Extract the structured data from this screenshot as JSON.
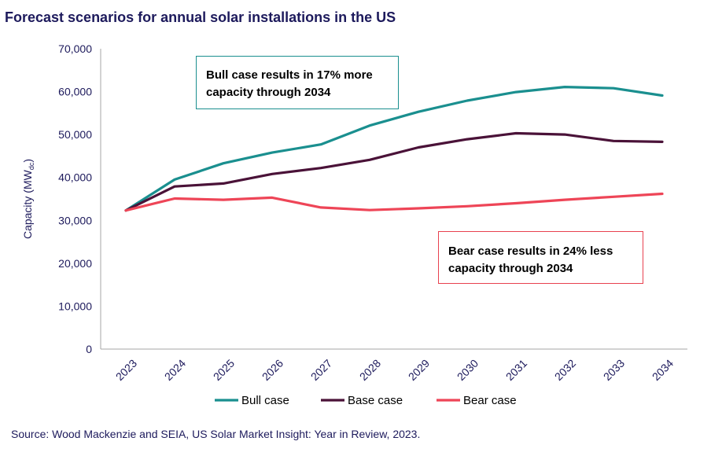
{
  "title": "Forecast scenarios for annual solar installations in the US",
  "source": "Source: Wood Mackenzie and SEIA, US Solar Market Insight: Year in Review, 2023.",
  "annotations": {
    "bull": "Bull case results in 17% more capacity through 2034",
    "bear": "Bear case results in 24% less capacity through 2034"
  },
  "chart_data": {
    "type": "line",
    "ylabel_main": "Capacity (MW",
    "ylabel_sub": "dc",
    "ylabel_close": ")",
    "ylim": [
      0,
      70000
    ],
    "yticks": [
      "0",
      "10,000",
      "20,000",
      "30,000",
      "40,000",
      "50,000",
      "60,000",
      "70,000"
    ],
    "x": [
      "2023",
      "2024",
      "2025",
      "2026",
      "2027",
      "2028",
      "2029",
      "2030",
      "2031",
      "2032",
      "2033",
      "2034"
    ],
    "grid": false,
    "legend_position": "bottom",
    "series": [
      {
        "name": "Bull case",
        "color": "#1a8f8f",
        "values": [
          32300,
          39500,
          43300,
          45800,
          47700,
          52100,
          55300,
          57900,
          59900,
          61100,
          60800,
          59100
        ]
      },
      {
        "name": "Base case",
        "color": "#4a1238",
        "values": [
          32300,
          37900,
          38600,
          40800,
          42200,
          44100,
          47000,
          48900,
          50300,
          50000,
          48500,
          48300
        ]
      },
      {
        "name": "Bear case",
        "color": "#ee4557",
        "values": [
          32300,
          35100,
          34800,
          35300,
          33000,
          32400,
          32800,
          33300,
          34000,
          34800,
          35500,
          36200
        ]
      }
    ]
  }
}
